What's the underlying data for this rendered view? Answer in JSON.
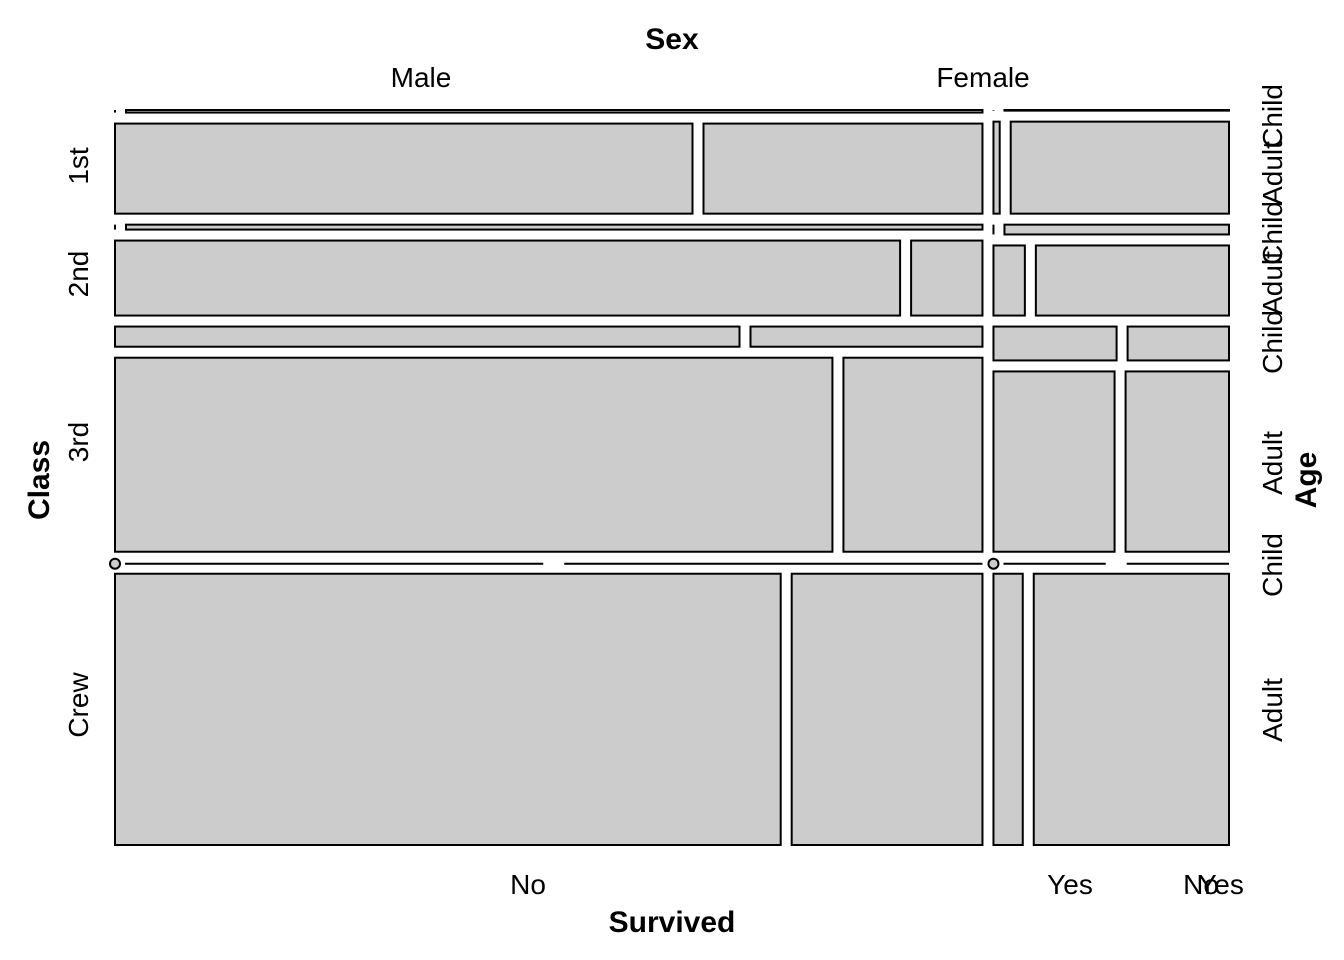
{
  "chart_data": {
    "type": "mosaic",
    "title": "",
    "xlabel": "Survived",
    "ylabel": "Class",
    "top_label": "Sex",
    "right_label": "Age",
    "sex_levels": [
      "Male",
      "Female"
    ],
    "class_levels": [
      "1st",
      "2nd",
      "3rd",
      "Crew"
    ],
    "age_levels": [
      "Child",
      "Adult"
    ],
    "survived_levels": [
      "No",
      "Yes"
    ],
    "bottom_tick_labels": [
      "No",
      "Yes",
      "No",
      "Yes"
    ],
    "right_tick_labels": [
      "Child",
      "Adult",
      "Child",
      "Adult",
      "Child",
      "Adult",
      "Child",
      "Adult"
    ],
    "cells": [
      {
        "class": "1st",
        "sex": "Male",
        "age": "Child",
        "survived": "No",
        "count": 0
      },
      {
        "class": "1st",
        "sex": "Male",
        "age": "Child",
        "survived": "Yes",
        "count": 5
      },
      {
        "class": "1st",
        "sex": "Male",
        "age": "Adult",
        "survived": "No",
        "count": 118
      },
      {
        "class": "1st",
        "sex": "Male",
        "age": "Adult",
        "survived": "Yes",
        "count": 57
      },
      {
        "class": "1st",
        "sex": "Female",
        "age": "Child",
        "survived": "No",
        "count": 0
      },
      {
        "class": "1st",
        "sex": "Female",
        "age": "Child",
        "survived": "Yes",
        "count": 1
      },
      {
        "class": "1st",
        "sex": "Female",
        "age": "Adult",
        "survived": "No",
        "count": 4
      },
      {
        "class": "1st",
        "sex": "Female",
        "age": "Adult",
        "survived": "Yes",
        "count": 140
      },
      {
        "class": "2nd",
        "sex": "Male",
        "age": "Child",
        "survived": "No",
        "count": 0
      },
      {
        "class": "2nd",
        "sex": "Male",
        "age": "Child",
        "survived": "Yes",
        "count": 11
      },
      {
        "class": "2nd",
        "sex": "Male",
        "age": "Adult",
        "survived": "No",
        "count": 154
      },
      {
        "class": "2nd",
        "sex": "Male",
        "age": "Adult",
        "survived": "Yes",
        "count": 14
      },
      {
        "class": "2nd",
        "sex": "Female",
        "age": "Child",
        "survived": "No",
        "count": 0
      },
      {
        "class": "2nd",
        "sex": "Female",
        "age": "Child",
        "survived": "Yes",
        "count": 13
      },
      {
        "class": "2nd",
        "sex": "Female",
        "age": "Adult",
        "survived": "No",
        "count": 13
      },
      {
        "class": "2nd",
        "sex": "Female",
        "age": "Adult",
        "survived": "Yes",
        "count": 80
      },
      {
        "class": "3rd",
        "sex": "Male",
        "age": "Child",
        "survived": "No",
        "count": 35
      },
      {
        "class": "3rd",
        "sex": "Male",
        "age": "Child",
        "survived": "Yes",
        "count": 13
      },
      {
        "class": "3rd",
        "sex": "Male",
        "age": "Adult",
        "survived": "No",
        "count": 387
      },
      {
        "class": "3rd",
        "sex": "Male",
        "age": "Adult",
        "survived": "Yes",
        "count": 75
      },
      {
        "class": "3rd",
        "sex": "Female",
        "age": "Child",
        "survived": "No",
        "count": 17
      },
      {
        "class": "3rd",
        "sex": "Female",
        "age": "Child",
        "survived": "Yes",
        "count": 14
      },
      {
        "class": "3rd",
        "sex": "Female",
        "age": "Adult",
        "survived": "No",
        "count": 89
      },
      {
        "class": "3rd",
        "sex": "Female",
        "age": "Adult",
        "survived": "Yes",
        "count": 76
      },
      {
        "class": "Crew",
        "sex": "Male",
        "age": "Child",
        "survived": "No",
        "count": 0
      },
      {
        "class": "Crew",
        "sex": "Male",
        "age": "Child",
        "survived": "Yes",
        "count": 0
      },
      {
        "class": "Crew",
        "sex": "Male",
        "age": "Adult",
        "survived": "No",
        "count": 670
      },
      {
        "class": "Crew",
        "sex": "Male",
        "age": "Adult",
        "survived": "Yes",
        "count": 192
      },
      {
        "class": "Crew",
        "sex": "Female",
        "age": "Child",
        "survived": "No",
        "count": 0
      },
      {
        "class": "Crew",
        "sex": "Female",
        "age": "Child",
        "survived": "Yes",
        "count": 0
      },
      {
        "class": "Crew",
        "sex": "Female",
        "age": "Adult",
        "survived": "No",
        "count": 3
      },
      {
        "class": "Crew",
        "sex": "Female",
        "age": "Adult",
        "survived": "Yes",
        "count": 20
      }
    ]
  }
}
